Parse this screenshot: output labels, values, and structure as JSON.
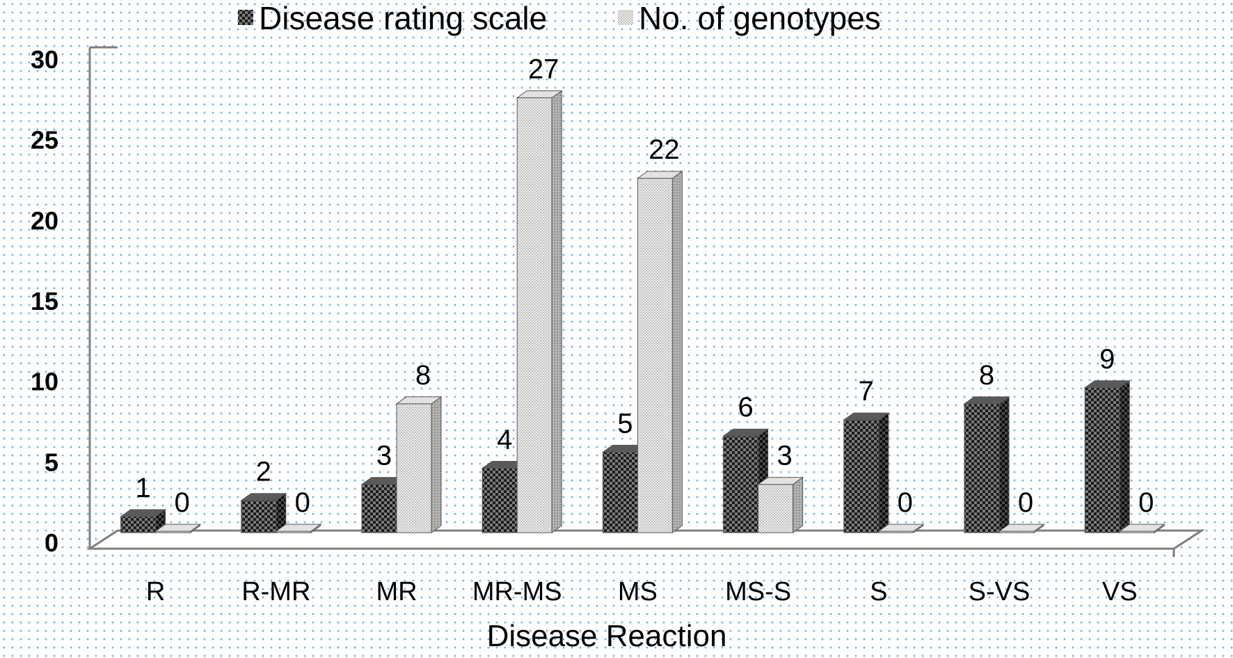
{
  "chart_data": {
    "type": "bar",
    "title": "",
    "xlabel": "Disease Reaction",
    "ylabel": "",
    "ylim": [
      0,
      30
    ],
    "yticks": [
      0,
      5,
      10,
      15,
      20,
      25,
      30
    ],
    "categories": [
      "R",
      "R-MR",
      "MR",
      "MR-MS",
      "MS",
      "MS-S",
      "S",
      "S-VS",
      "VS"
    ],
    "series": [
      {
        "name": "Disease rating scale",
        "values": [
          1,
          2,
          3,
          4,
          5,
          6,
          7,
          8,
          9
        ]
      },
      {
        "name": "No. of genotypes",
        "values": [
          0,
          0,
          8,
          27,
          22,
          3,
          0,
          0,
          0
        ]
      }
    ],
    "legend": "top-center",
    "grid": false,
    "three_d": true
  },
  "colors": {
    "axis": "#7f7f7f",
    "background_dots": "#7fb3e0",
    "series1_fill": "#3a3a3a",
    "series2_fill": "#d6d6d6"
  },
  "icons": {
    "series1_swatch": "checker-pattern-swatch",
    "series2_swatch": "dotted-pattern-swatch"
  }
}
